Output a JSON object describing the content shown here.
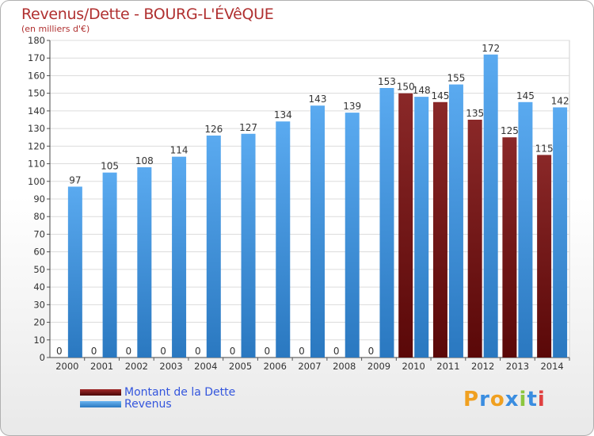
{
  "chart_data": {
    "type": "bar",
    "title": "Revenus/Dette - BOURG-L'ÉVêQUE",
    "subtitle": "(en milliers d'€)",
    "categories": [
      "2000",
      "2001",
      "2002",
      "2003",
      "2004",
      "2005",
      "2006",
      "2007",
      "2008",
      "2009",
      "2010",
      "2011",
      "2012",
      "2013",
      "2014"
    ],
    "series": [
      {
        "name": "Montant de la Dette",
        "values": [
          0,
          0,
          0,
          0,
          0,
          0,
          0,
          0,
          0,
          0,
          150,
          145,
          135,
          125,
          115
        ],
        "color": "#7a1818"
      },
      {
        "name": "Revenus",
        "values": [
          97,
          105,
          108,
          114,
          126,
          127,
          134,
          143,
          139,
          153,
          148,
          155,
          172,
          145,
          142
        ],
        "color": "#3d8fd6"
      }
    ],
    "ylim": [
      0,
      180
    ],
    "yticks": [
      0,
      10,
      20,
      30,
      40,
      50,
      60,
      70,
      80,
      90,
      100,
      110,
      120,
      130,
      140,
      150,
      160,
      170,
      180
    ],
    "grid": true,
    "xlabel": "",
    "ylabel": ""
  },
  "logo": {
    "text": "Proxiti",
    "letters": [
      "P",
      "r",
      "o",
      "x",
      "i",
      "t",
      "i"
    ],
    "colors": [
      "#f0a020",
      "#3a8de0",
      "#f0a020",
      "#3a8de0",
      "#8cc63f",
      "#3a8de0",
      "#e04040"
    ]
  }
}
